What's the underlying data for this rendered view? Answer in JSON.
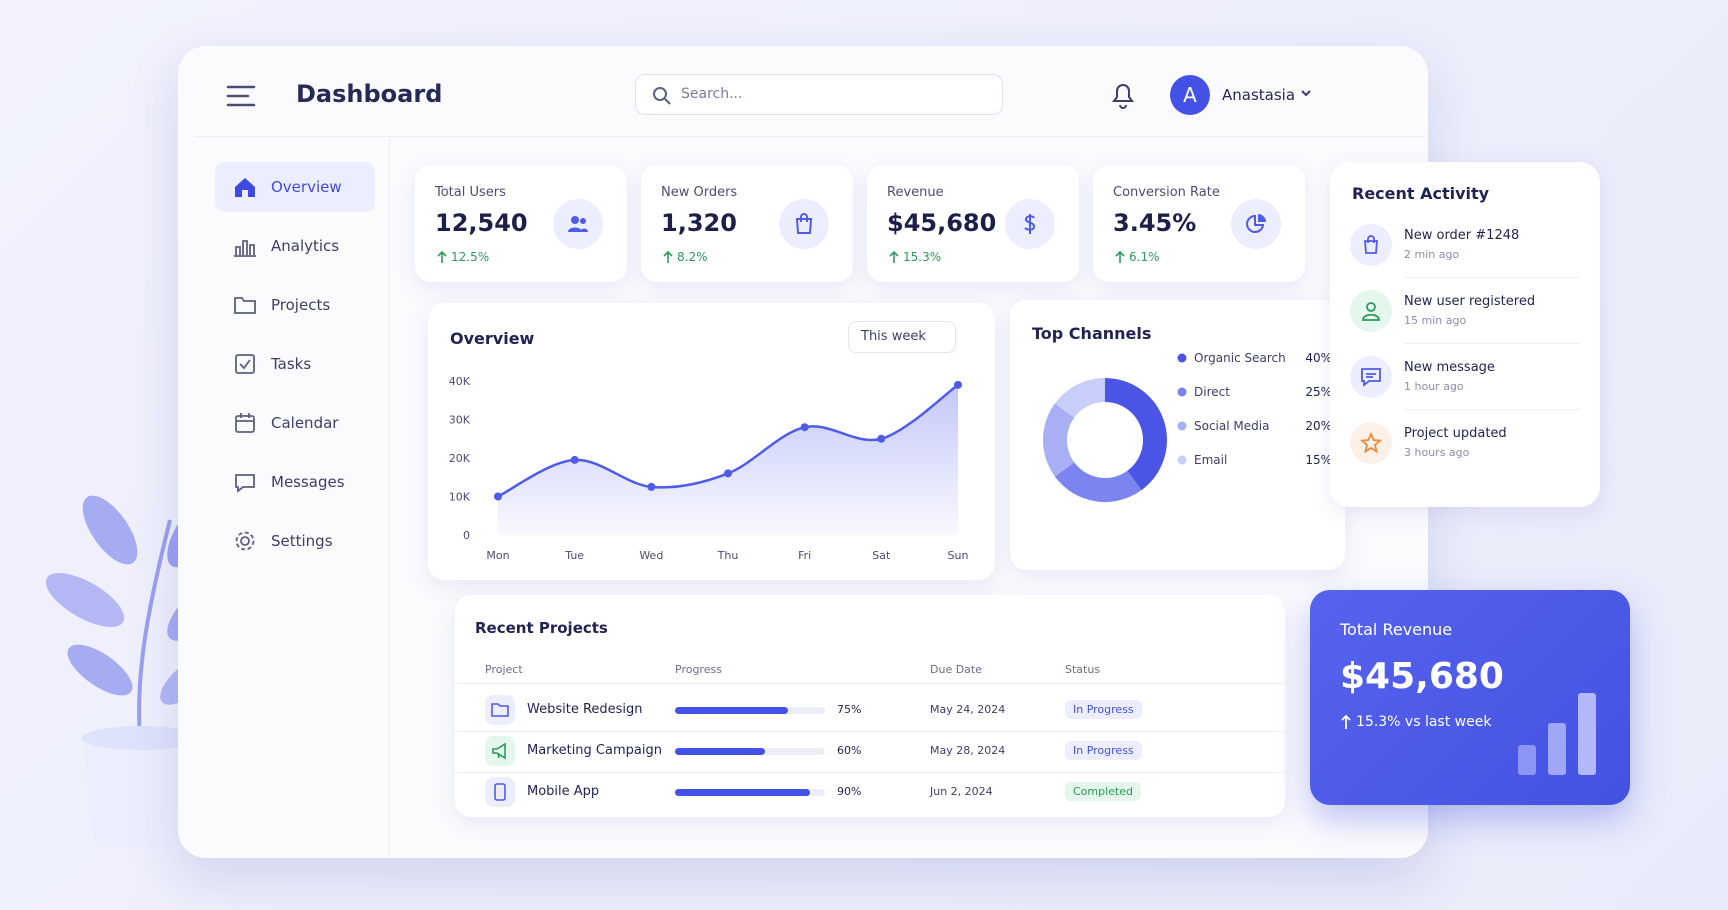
{
  "header": {
    "title": "Dashboard",
    "search_placeholder": "Search...",
    "user_initial": "A",
    "user_name": "Anastasia"
  },
  "sidebar": {
    "items": [
      "Overview",
      "Analytics",
      "Projects",
      "Tasks",
      "Calendar",
      "Messages",
      "Settings"
    ]
  },
  "stats": [
    {
      "label": "Total Users",
      "value": "12,540",
      "change": "12.5%"
    },
    {
      "label": "New Orders",
      "value": "1,320",
      "change": "8.2%"
    },
    {
      "label": "Revenue",
      "value": "$45,680",
      "change": "15.3%"
    },
    {
      "label": "Conversion Rate",
      "value": "3.45%",
      "change": "6.1%"
    }
  ],
  "overview": {
    "type": "line",
    "title": "Overview",
    "range": "This week",
    "categories": [
      "Mon",
      "Tue",
      "Wed",
      "Thu",
      "Fri",
      "Sat",
      "Sun"
    ],
    "values": [
      10000,
      19500,
      12500,
      16000,
      28000,
      25000,
      39000
    ],
    "color": "#4f5ce8",
    "ylim": [
      0,
      40000
    ],
    "yticks": [
      0,
      {
        "value": 10000,
        "label": "10K"
      },
      {
        "value": 20000,
        "label": "20K"
      },
      {
        "value": 30000,
        "label": "30K"
      },
      {
        "value": 40000,
        "label": "40K"
      }
    ]
  },
  "channels": {
    "type": "pie",
    "title": "Top Channels",
    "categories": [
      "Organic Search",
      "Direct",
      "Social Media",
      "Email"
    ],
    "values": [
      40,
      25,
      20,
      15
    ],
    "value_labels": [
      "40%",
      "25%",
      "20%",
      "15%"
    ],
    "colors": [
      "#4a55e6",
      "#7b84ef",
      "#a9aff5",
      "#c9cdf9"
    ]
  },
  "activity": {
    "title": "Recent Activity",
    "items": [
      {
        "title": "New order #1248",
        "time": "2 min ago"
      },
      {
        "title": "New user registered",
        "time": "15 min ago"
      },
      {
        "title": "New message",
        "time": "1 hour ago"
      },
      {
        "title": "Project updated",
        "time": "3 hours ago"
      }
    ]
  },
  "projects": {
    "title": "Recent Projects",
    "columns": [
      "Project",
      "Progress",
      "Due Date",
      "Status"
    ],
    "rows": [
      {
        "name": "Website Redesign",
        "progress": 75,
        "progress_label": "75%",
        "due_date": "May 24, 2024",
        "status": "In Progress"
      },
      {
        "name": "Marketing Campaign",
        "progress": 60,
        "progress_label": "60%",
        "due_date": "May 28, 2024",
        "status": "In Progress"
      },
      {
        "name": "Mobile App",
        "progress": 90,
        "progress_label": "90%",
        "due_date": "Jun 2, 2024",
        "status": "Completed"
      }
    ]
  },
  "total_revenue": {
    "title": "Total Revenue",
    "value": "$45,680",
    "change": "15.3% vs last week"
  }
}
